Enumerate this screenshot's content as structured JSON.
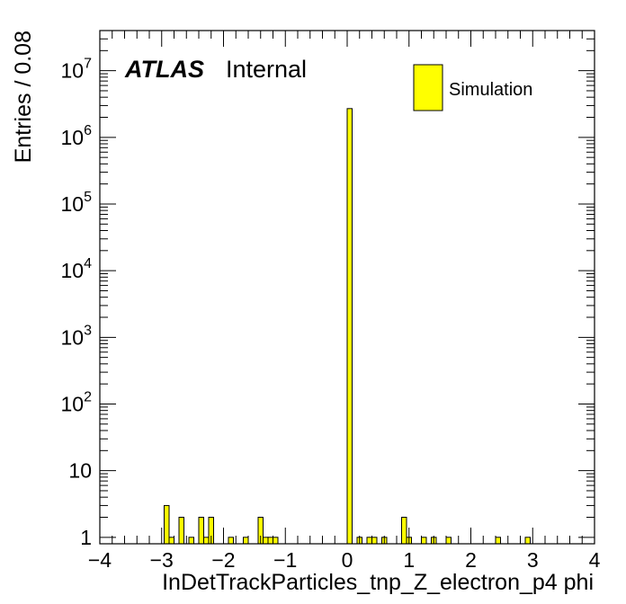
{
  "chart_data": {
    "type": "bar",
    "xlabel": "InDetTrackParticles_tnp_Z_electron_p4 phi",
    "ylabel": "Entries / 0.08",
    "xlim": [
      -4,
      4
    ],
    "ylim": [
      0.8,
      40000000
    ],
    "yscale": "log",
    "bin_width": 0.08,
    "x_ticks": [
      "−4",
      "−3",
      "−2",
      "−1",
      "0",
      "1",
      "2",
      "3",
      "4"
    ],
    "y_ticks": [
      {
        "value": 1,
        "base": "1",
        "exp": ""
      },
      {
        "value": 10,
        "base": "10",
        "exp": ""
      },
      {
        "value": 100,
        "base": "10",
        "exp": "2"
      },
      {
        "value": 1000,
        "base": "10",
        "exp": "3"
      },
      {
        "value": 10000,
        "base": "10",
        "exp": "4"
      },
      {
        "value": 100000,
        "base": "10",
        "exp": "5"
      },
      {
        "value": 1000000,
        "base": "10",
        "exp": "6"
      },
      {
        "value": 10000000,
        "base": "10",
        "exp": "7"
      }
    ],
    "atlas_label": "ATLAS",
    "atlas_sublabel": "Internal",
    "legend_position": "top-right",
    "series": [
      {
        "name": "Simulation",
        "color": "#ffff00",
        "edge_color": "#000000",
        "bins": [
          {
            "x": -2.96,
            "value": 3
          },
          {
            "x": -2.88,
            "value": 1
          },
          {
            "x": -2.72,
            "value": 2
          },
          {
            "x": -2.56,
            "value": 1
          },
          {
            "x": -2.4,
            "value": 2
          },
          {
            "x": -2.32,
            "value": 1
          },
          {
            "x": -2.24,
            "value": 2
          },
          {
            "x": -1.92,
            "value": 1
          },
          {
            "x": -1.68,
            "value": 1
          },
          {
            "x": -1.44,
            "value": 2
          },
          {
            "x": -1.36,
            "value": 1
          },
          {
            "x": -1.28,
            "value": 1
          },
          {
            "x": -1.2,
            "value": 1
          },
          {
            "x": 0.0,
            "value": 2700000
          },
          {
            "x": 0.16,
            "value": 1
          },
          {
            "x": 0.32,
            "value": 1
          },
          {
            "x": 0.4,
            "value": 1
          },
          {
            "x": 0.56,
            "value": 1
          },
          {
            "x": 0.88,
            "value": 2
          },
          {
            "x": 0.96,
            "value": 1
          },
          {
            "x": 1.2,
            "value": 1
          },
          {
            "x": 1.36,
            "value": 1
          },
          {
            "x": 1.6,
            "value": 1
          },
          {
            "x": 2.4,
            "value": 1
          },
          {
            "x": 2.88,
            "value": 1
          }
        ]
      }
    ]
  }
}
